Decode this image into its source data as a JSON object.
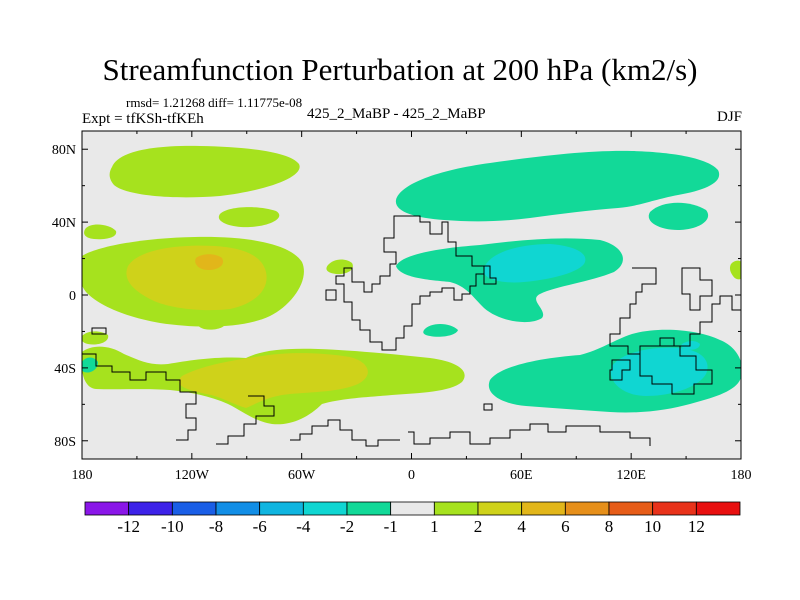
{
  "chart_data": {
    "type": "heatmap",
    "title": "Streamfunction Perturbation at 200 hPa (km2/s)",
    "stats_text": "rmsd= 1.21268 diff= 1.11775e-08",
    "left_label": "Expt = tfKSh-tfKEh",
    "center_label": "425_2_MaBP - 425_2_MaBP",
    "right_label": "DJF",
    "xlabel": "",
    "ylabel": "",
    "x_ticks": [
      "180",
      "120W",
      "60W",
      "0",
      "60E",
      "120E",
      "180"
    ],
    "x_tick_values": [
      -180,
      -120,
      -60,
      0,
      60,
      120,
      180
    ],
    "y_ticks": [
      "80N",
      "40N",
      "0",
      "40S",
      "80S"
    ],
    "y_tick_values": [
      80,
      40,
      0,
      -40,
      -80
    ],
    "xlim": [
      -180,
      180
    ],
    "ylim": [
      -90,
      90
    ],
    "colorbar": {
      "labels": [
        "-12",
        "-10",
        "-8",
        "-6",
        "-4",
        "-2",
        "-1",
        "1",
        "2",
        "4",
        "6",
        "8",
        "10",
        "12"
      ],
      "colors": [
        "#8a16e8",
        "#3d22e8",
        "#1a5ee6",
        "#128ee6",
        "#10b5e0",
        "#10d6d2",
        "#12d998",
        "#e9e9e9",
        "#a6e21e",
        "#cfd21a",
        "#e2b61a",
        "#e68f1a",
        "#e65c18",
        "#e8321a",
        "#e81010"
      ]
    },
    "regions": [
      {
        "name": "north-pacific-positive",
        "level": "1",
        "value_range": [
          1,
          2
        ],
        "center": [
          -130,
          75
        ]
      },
      {
        "name": "tropical-pacific-positive",
        "level": "2",
        "value_range": [
          2,
          4
        ],
        "center": [
          -125,
          12
        ]
      },
      {
        "name": "tropical-pacific-max",
        "level": "4",
        "value_range": [
          4,
          6
        ],
        "center": [
          -114,
          19
        ]
      },
      {
        "name": "south-pacific-positive",
        "level": "2",
        "value_range": [
          2,
          4
        ],
        "center": [
          -70,
          -45
        ]
      },
      {
        "name": "north-atlantic-europe-negative",
        "level": "-1",
        "value_range": [
          -2,
          -1
        ],
        "center": [
          60,
          70
        ]
      },
      {
        "name": "tropical-indian-negative",
        "level": "-2",
        "value_range": [
          -4,
          -2
        ],
        "center": [
          70,
          17
        ]
      },
      {
        "name": "southern-indian-australia-negative",
        "level": "-2",
        "value_range": [
          -4,
          -2
        ],
        "center": [
          145,
          -42
        ]
      }
    ]
  }
}
